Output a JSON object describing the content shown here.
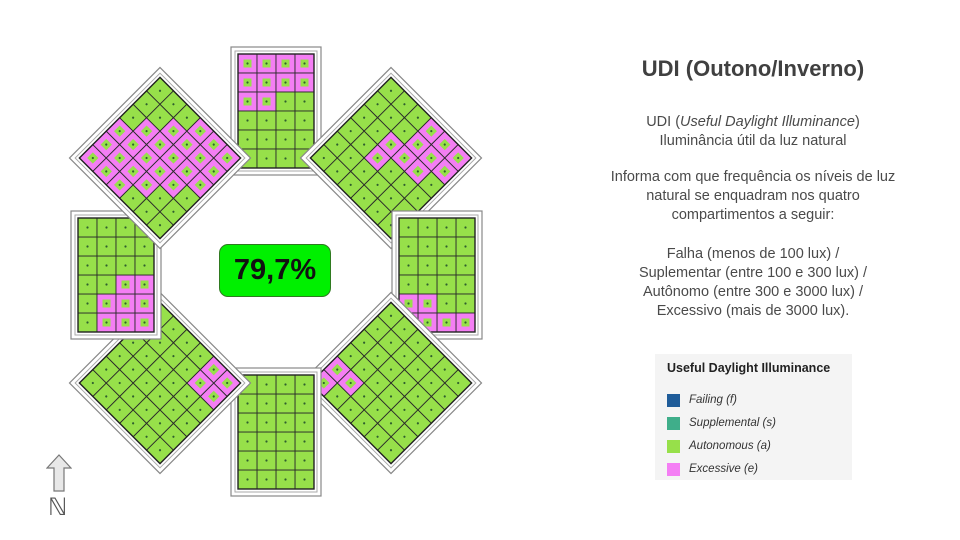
{
  "title": "UDI (Outono/Inverno)",
  "description": {
    "line1_prefix": "UDI (",
    "line1_italic": "Useful Daylight Illuminance",
    "line1_suffix": ")",
    "line2": "Iluminância útil da luz natural",
    "intro": [
      "Informa com que frequência os níveis de luz",
      "natural se enquadram nos quatro",
      "compartimentos a seguir:"
    ],
    "bins": [
      "Falha (menos de 100 lux) /",
      "Suplementar (entre 100 e 300 lux) /",
      "Autônomo (entre 300 e 3000 lux) /",
      "Excessivo (mais de 3000 lux)."
    ]
  },
  "center_value": "79,7%",
  "north_label": "ℕ",
  "legend": {
    "title": "Useful Daylight Illuminance",
    "items": [
      {
        "label": "Failing (f)",
        "color": "#1f5c99"
      },
      {
        "label": "Supplemental (s)",
        "color": "#3fae8a"
      },
      {
        "label": "Autonomous (a)",
        "color": "#97e04a"
      },
      {
        "label": "Excessive (e)",
        "color": "#f47ef4"
      }
    ]
  },
  "colors": {
    "autonomous": "#97e04a",
    "excessive": "#f47ef4",
    "accent": "#00f000"
  },
  "rooms": [
    {
      "name": "north",
      "grid": [
        "eeee",
        "eeee",
        "eeaa",
        "aaaa",
        "aaaa",
        "aaaa"
      ]
    },
    {
      "name": "northeast",
      "grid": [
        "aaaeee",
        "aaaeee",
        "aaeeea",
        "aaeaaa",
        "aaaaaa",
        "aaaaaa"
      ]
    },
    {
      "name": "east",
      "grid": [
        "aaaaae",
        "aaaaae",
        "aaaaee",
        "aaaaee"
      ]
    },
    {
      "name": "southeast",
      "grid": [
        "aaaaaa",
        "aaaaaa",
        "aaaaaa",
        "aaaaaa",
        "aaaaea",
        "aaaaee"
      ]
    },
    {
      "name": "south",
      "grid": [
        "aaaa",
        "aaaa",
        "aaaa",
        "aaaa",
        "aaaa",
        "aaaa"
      ]
    },
    {
      "name": "southwest",
      "grid": [
        "aaaaaa",
        "aaaaaa",
        "aaaaaa",
        "aaaaaa",
        "eeaaaa",
        "eeaaaa"
      ]
    },
    {
      "name": "west",
      "grid": [
        "aaaaaa",
        "eeaaaa",
        "eeeaaa",
        "eeeaaa"
      ]
    },
    {
      "name": "northwest",
      "grid": [
        "eeeaaa",
        "eeeeaa",
        "eeeeea",
        "aeeeee",
        "aaeeee",
        "aaaeee"
      ]
    }
  ]
}
